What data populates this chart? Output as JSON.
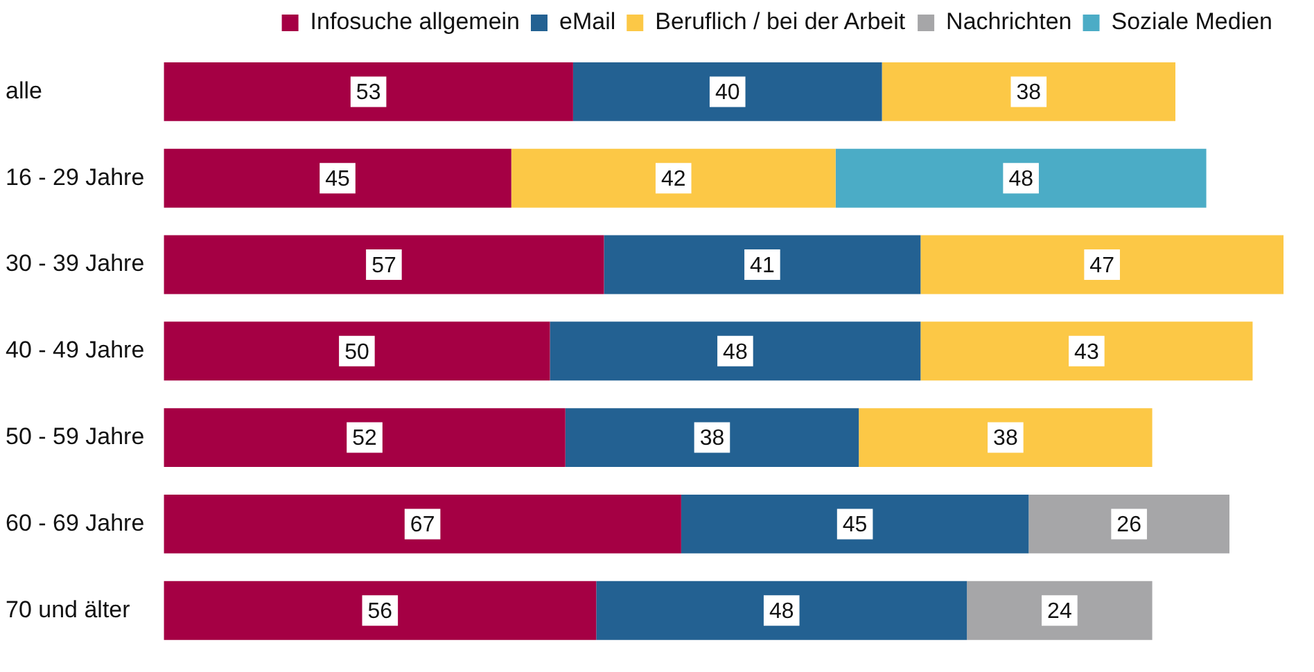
{
  "chart_data": {
    "type": "bar",
    "orientation": "horizontal",
    "stacked": true,
    "data_labels": true,
    "legend": "top",
    "categories": [
      "alle",
      "16 - 29 Jahre",
      "30 - 39 Jahre",
      "40 - 49 Jahre",
      "50 - 59 Jahre",
      "60 - 69 Jahre",
      "70 und älter"
    ],
    "series": [
      {
        "name": "Infosuche allgemein",
        "color": "#a50044",
        "values": [
          53,
          45,
          57,
          50,
          52,
          67,
          56
        ]
      },
      {
        "name": "eMail",
        "color": "#236192",
        "values": [
          40,
          null,
          41,
          48,
          38,
          45,
          48
        ]
      },
      {
        "name": "Beruflich / bei der Arbeit",
        "color": "#fcc846",
        "values": [
          38,
          42,
          47,
          43,
          38,
          null,
          null
        ]
      },
      {
        "name": "Nachrichten",
        "color": "#a6a6a8",
        "values": [
          null,
          null,
          null,
          null,
          null,
          26,
          24
        ]
      },
      {
        "name": "Soziale Medien",
        "color": "#4bacc6",
        "values": [
          null,
          48,
          null,
          null,
          null,
          null,
          null
        ]
      }
    ]
  }
}
